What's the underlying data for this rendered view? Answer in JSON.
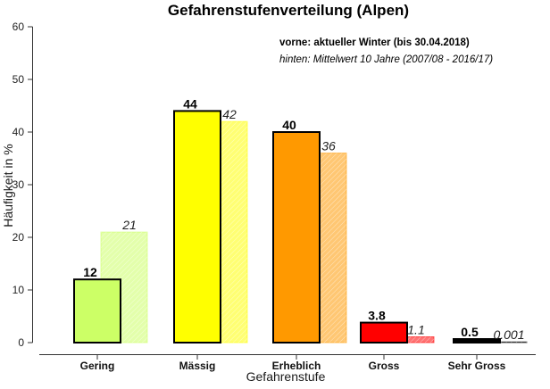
{
  "chart_data": {
    "type": "bar",
    "title": "Gefahrenstufenverteilung (Alpen)",
    "xlabel": "Gefahrenstufe",
    "ylabel": "Häufigkeit in %",
    "ylim": [
      0,
      60
    ],
    "yticks": [
      "0",
      "10",
      "20",
      "30",
      "40",
      "50",
      "60"
    ],
    "grid": false,
    "legend_position": "top-right",
    "categories": [
      "Gering",
      "Mässig",
      "Erheblich",
      "Gross",
      "Sehr Gross"
    ],
    "colors": [
      "#ccff66",
      "#ffff00",
      "#ff9900",
      "#ff0000",
      "#000000"
    ],
    "series": [
      {
        "name": "vorne: aktueller Winter (bis 30.04.2018)",
        "values": [
          12,
          44,
          40,
          3.8,
          0.5
        ],
        "labels": [
          "12",
          "44",
          "40",
          "3.8",
          "0.5"
        ]
      },
      {
        "name": "hinten: Mittelwert 10 Jahre (2007/08 - 2016/17)",
        "values": [
          21,
          42,
          36,
          1.1,
          0.001
        ],
        "labels": [
          "21",
          "42",
          "36",
          "1.1",
          "0.001"
        ]
      }
    ]
  }
}
